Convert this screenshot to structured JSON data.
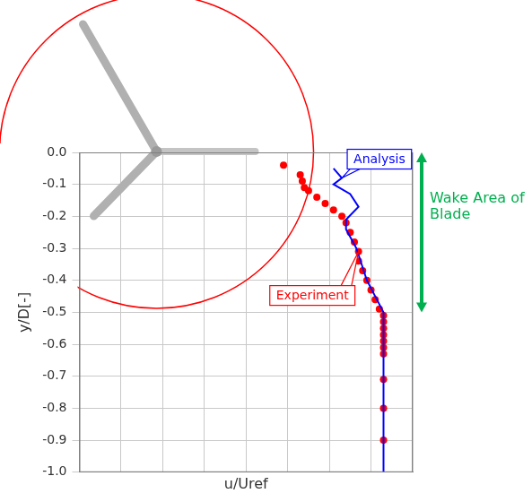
{
  "chart_data": {
    "type": "scatter",
    "x_label": "u/Uref",
    "y_label": "y/D[-]",
    "xlim": [
      0.3,
      1.1
    ],
    "xticks": [
      0.3,
      0.4,
      0.5,
      0.6,
      0.7,
      0.8,
      0.9,
      1.0,
      1.1
    ],
    "ylim": [
      -1,
      0
    ],
    "yticks": [
      {
        "value": -1,
        "label": "-1.0"
      },
      -0.9,
      -0.8,
      -0.7,
      -0.6,
      -0.5,
      -0.4,
      -0.3,
      -0.2,
      -0.1,
      {
        "value": 0,
        "label": "0.0"
      }
    ],
    "grid": true,
    "tick_labels": "y",
    "series": [
      {
        "name": "Experiment",
        "color": "#ff0000",
        "marker": "circle",
        "line_style": "none",
        "x": [
          0.79,
          0.83,
          0.835,
          0.84,
          0.85,
          0.87,
          0.89,
          0.91,
          0.93,
          0.94,
          0.95,
          0.96,
          0.97,
          0.97,
          0.98,
          0.99,
          1.0,
          1.01,
          1.02,
          1.03,
          1.03,
          1.03,
          1.03,
          1.03,
          1.03,
          1.03,
          1.03,
          1.03,
          1.03
        ],
        "y": [
          -0.04,
          -0.07,
          -0.09,
          -0.11,
          -0.12,
          -0.14,
          -0.16,
          -0.18,
          -0.2,
          -0.22,
          -0.25,
          -0.28,
          -0.31,
          -0.34,
          -0.37,
          -0.4,
          -0.43,
          -0.46,
          -0.49,
          -0.51,
          -0.53,
          -0.55,
          -0.57,
          -0.59,
          -0.61,
          -0.63,
          -0.71,
          -0.8,
          -0.9
        ]
      },
      {
        "name": "Analysis",
        "color": "#0000ff",
        "marker": "none",
        "line_style": "solid",
        "type": "line",
        "x": [
          0.91,
          0.93,
          0.91,
          0.95,
          0.97,
          0.94,
          0.94,
          0.965,
          0.99,
          1.03,
          1.03,
          1.03
        ],
        "y": [
          -0.05,
          -0.08,
          -0.1,
          -0.13,
          -0.17,
          -0.21,
          -0.24,
          -0.3,
          -0.4,
          -0.5,
          -0.6,
          -1.0
        ]
      }
    ],
    "annotations": [
      {
        "text": "Wake Area of Blade",
        "color": "#00b050",
        "y_range": [
          0,
          -0.5
        ]
      }
    ]
  }
}
